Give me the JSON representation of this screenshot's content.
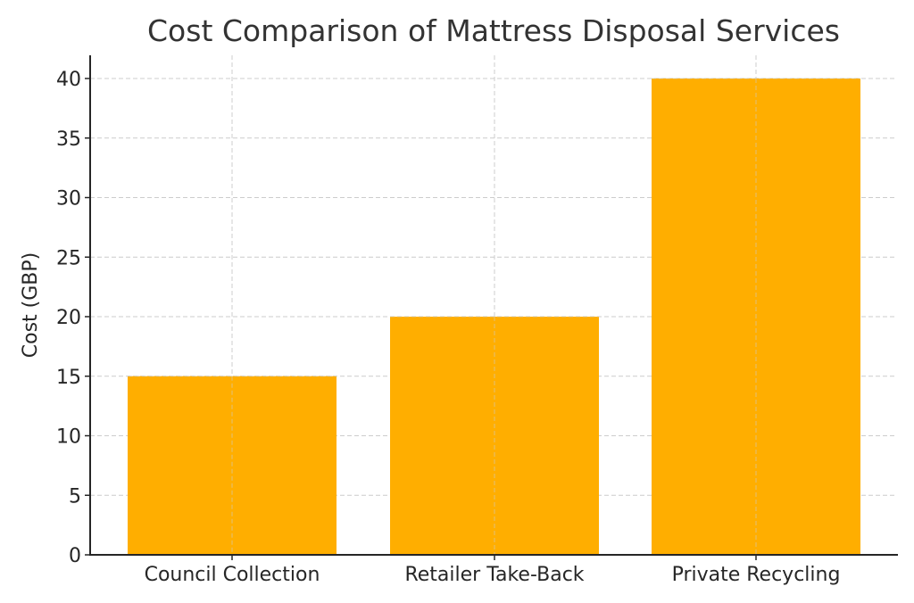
{
  "chart_data": {
    "type": "bar",
    "title": "Cost Comparison of Mattress Disposal Services",
    "xlabel": "",
    "ylabel": "Cost (GBP)",
    "categories": [
      "Council Collection",
      "Retailer Take-Back",
      "Private Recycling"
    ],
    "values": [
      15,
      20,
      40
    ],
    "ylim": [
      0,
      42
    ],
    "yticks": [
      0,
      5,
      10,
      15,
      20,
      25,
      30,
      35,
      40
    ],
    "grid": true,
    "legend": null,
    "bar_color": "#FFAE00"
  },
  "colors": {
    "bar": "#FFAE00",
    "grid": "#cccccc",
    "axis": "#262626",
    "text": "#333333"
  }
}
